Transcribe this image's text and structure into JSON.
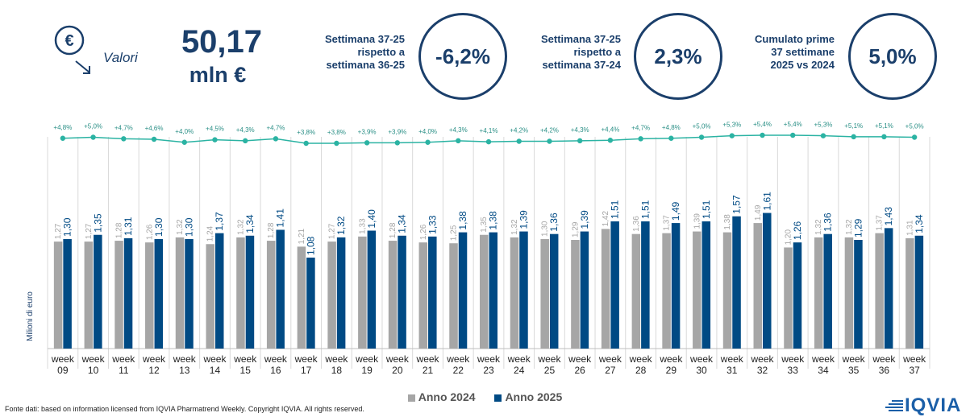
{
  "header": {
    "valori_label": "Valori",
    "euro_symbol": "€",
    "total_value": "50,17",
    "total_unit": "mln €"
  },
  "stats": [
    {
      "label": "Settimana 37-25\nrispetto a\nsettimana 36-25",
      "value": "-6,2%"
    },
    {
      "label": "Settimana 37-25\nrispetto a\nsettimana 37-24",
      "value": "2,3%"
    },
    {
      "label": "Cumulato prime\n37 settimane\n2025 vs 2024",
      "value": "5,0%"
    }
  ],
  "legend": {
    "series_a": "Anno 2024",
    "series_b": "Anno 2025"
  },
  "footer": "Fonte dati: based on information licensed from IQVIA Pharmatrend Weekly. Copyright IQVIA. All rights reserved.",
  "logo": "IQVIA",
  "colors": {
    "navy": "#1b3f6b",
    "anno_2024": "#a6a6a6",
    "anno_2025": "#004a84",
    "growth_line": "#2bb3a3"
  },
  "chart_data": {
    "type": "bar",
    "ylabel": "Milioni di euro",
    "x_label_prefix": "week",
    "categories": [
      "09",
      "10",
      "11",
      "12",
      "13",
      "14",
      "15",
      "16",
      "17",
      "18",
      "19",
      "20",
      "21",
      "22",
      "23",
      "24",
      "25",
      "26",
      "27",
      "28",
      "29",
      "30",
      "31",
      "32",
      "33",
      "34",
      "35",
      "36",
      "37"
    ],
    "series": [
      {
        "name": "Anno 2024",
        "values": [
          1.27,
          1.27,
          1.28,
          1.26,
          1.32,
          1.24,
          1.32,
          1.28,
          1.21,
          1.27,
          1.33,
          1.28,
          1.26,
          1.25,
          1.35,
          1.32,
          1.3,
          1.29,
          1.42,
          1.36,
          1.37,
          1.39,
          1.38,
          1.49,
          1.2,
          1.32,
          1.32,
          1.37,
          1.31
        ],
        "labels": [
          "1,27",
          "1,27",
          "1,28",
          "1,26",
          "1,32",
          "1,24",
          "1,32",
          "1,28",
          "1,21",
          "1,27",
          "1,33",
          "1,28",
          "1,26",
          "1,25",
          "1,35",
          "1,32",
          "1,30",
          "1,29",
          "1,42",
          "1,36",
          "1,37",
          "1,39",
          "1,38",
          "1,49",
          "1,20",
          "1,32",
          "1,32",
          "1,37",
          "1,31"
        ]
      },
      {
        "name": "Anno 2025",
        "values": [
          1.3,
          1.35,
          1.31,
          1.3,
          1.3,
          1.37,
          1.34,
          1.41,
          1.08,
          1.32,
          1.4,
          1.34,
          1.33,
          1.38,
          1.38,
          1.39,
          1.36,
          1.39,
          1.51,
          1.51,
          1.49,
          1.51,
          1.57,
          1.61,
          1.26,
          1.36,
          1.29,
          1.43,
          1.34
        ],
        "labels": [
          "1,30",
          "1,35",
          "1,31",
          "1,30",
          "1,30",
          "1,37",
          "1,34",
          "1,41",
          "1,08",
          "1,32",
          "1,40",
          "1,34",
          "1,33",
          "1,38",
          "1,38",
          "1,39",
          "1,36",
          "1,39",
          "1,51",
          "1,51",
          "1,49",
          "1,51",
          "1,57",
          "1,61",
          "1,26",
          "1,36",
          "1,29",
          "1,43",
          "1,34"
        ]
      }
    ],
    "growth": {
      "values": [
        4.8,
        5.0,
        4.7,
        4.6,
        4.0,
        4.5,
        4.3,
        4.7,
        3.8,
        3.8,
        3.9,
        3.9,
        4.0,
        4.3,
        4.1,
        4.2,
        4.2,
        4.3,
        4.4,
        4.7,
        4.8,
        5.0,
        5.3,
        5.4,
        5.4,
        5.3,
        5.1,
        5.1,
        5.0
      ],
      "labels": [
        "+4,8%",
        "+5,0%",
        "+4,7%",
        "+4,6%",
        "+4,0%",
        "+4,5%",
        "+4,3%",
        "+4,7%",
        "+3,8%",
        "+3,8%",
        "+3,9%",
        "+3,9%",
        "+4,0%",
        "+4,3%",
        "+4,1%",
        "+4,2%",
        "+4,2%",
        "+4,3%",
        "+4,4%",
        "+4,7%",
        "+4,8%",
        "+5,0%",
        "+5,3%",
        "+5,4%",
        "+5,4%",
        "+5,3%",
        "+5,1%",
        "+5,1%",
        "+5,0%"
      ]
    },
    "ylim": [
      0,
      2.8
    ],
    "grid": false,
    "legend_position": "bottom"
  }
}
